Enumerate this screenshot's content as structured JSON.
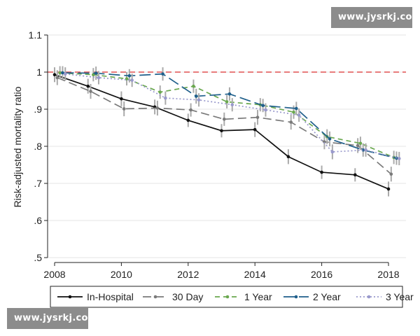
{
  "watermarks": {
    "top": "www.jysrkj.com",
    "bottom": "www.jysrkj.com"
  },
  "chart_data": {
    "type": "line",
    "title": "",
    "xlabel": "",
    "ylabel": "Risk-adjusted mortality ratio",
    "xlim": [
      2008,
      2018
    ],
    "ylim": [
      0.5,
      1.1
    ],
    "x_ticks": [
      2008,
      2010,
      2012,
      2014,
      2016,
      2018
    ],
    "y_ticks": [
      0.5,
      0.6,
      0.7,
      0.8,
      0.9,
      1.0,
      1.1
    ],
    "y_tick_labels": [
      ".5",
      ".6",
      ".7",
      ".8",
      ".9",
      "1",
      "1.1"
    ],
    "grid": "horizontal",
    "legend_position": "bottom",
    "reference_line": {
      "y": 1.0,
      "color": "#e05050",
      "style": "dashed"
    },
    "series": [
      {
        "name": "In-Hospital",
        "color": "#111111",
        "dash": "",
        "x": [
          2008,
          2009,
          2010,
          2011,
          2012,
          2013,
          2014,
          2015,
          2016,
          2017,
          2018
        ],
        "y": [
          0.993,
          0.962,
          0.928,
          0.906,
          0.87,
          0.842,
          0.845,
          0.772,
          0.73,
          0.723,
          0.685
        ],
        "err": [
          0.02,
          0.02,
          0.02,
          0.02,
          0.018,
          0.018,
          0.02,
          0.02,
          0.018,
          0.018,
          0.02
        ]
      },
      {
        "name": "30 Day",
        "color": "#7a7a7a",
        "dash": "12,6",
        "x": [
          2008.08,
          2009.08,
          2010.08,
          2011.08,
          2012.08,
          2013.08,
          2014.08,
          2015.08,
          2016.08,
          2017.08,
          2018.08
        ],
        "y": [
          0.985,
          0.948,
          0.901,
          0.903,
          0.898,
          0.873,
          0.878,
          0.865,
          0.812,
          0.802,
          0.725
        ],
        "err": [
          0.02,
          0.02,
          0.02,
          0.02,
          0.018,
          0.018,
          0.02,
          0.02,
          0.02,
          0.02,
          0.02
        ]
      },
      {
        "name": "1 Year",
        "color": "#6aa84f",
        "dash": "7,5",
        "x": [
          2008.16,
          2009.16,
          2010.16,
          2011.16,
          2012.16,
          2013.16,
          2014.16,
          2015.16,
          2016.16,
          2017.16,
          2018.16
        ],
        "y": [
          0.998,
          0.993,
          0.982,
          0.946,
          0.962,
          0.92,
          0.912,
          0.892,
          0.826,
          0.808,
          0.77
        ],
        "err": [
          0.018,
          0.018,
          0.018,
          0.018,
          0.018,
          0.018,
          0.018,
          0.018,
          0.02,
          0.018,
          0.018
        ]
      },
      {
        "name": "2 Year",
        "color": "#1f5f8b",
        "dash": "16,6",
        "x": [
          2008.24,
          2009.24,
          2010.24,
          2011.24,
          2012.24,
          2013.24,
          2014.24,
          2015.24,
          2016.24,
          2017.24,
          2018.24
        ],
        "y": [
          0.998,
          0.997,
          0.99,
          0.995,
          0.935,
          0.941,
          0.91,
          0.902,
          0.82,
          0.79,
          0.768
        ],
        "err": [
          0.018,
          0.018,
          0.018,
          0.018,
          0.02,
          0.018,
          0.018,
          0.018,
          0.02,
          0.018,
          0.018
        ]
      },
      {
        "name": "3 Year",
        "color": "#9999cc",
        "dash": "2,3",
        "x": [
          2008.32,
          2009.32,
          2010.32,
          2011.32,
          2012.32,
          2013.32,
          2014.32,
          2015.32,
          2016.32,
          2017.32,
          2018.32
        ],
        "y": [
          0.995,
          0.985,
          0.978,
          0.93,
          0.925,
          0.912,
          0.898,
          0.884,
          0.785,
          0.79,
          0.767
        ],
        "err": [
          0.018,
          0.018,
          0.018,
          0.018,
          0.018,
          0.018,
          0.018,
          0.018,
          0.02,
          0.018,
          0.018
        ]
      }
    ]
  }
}
